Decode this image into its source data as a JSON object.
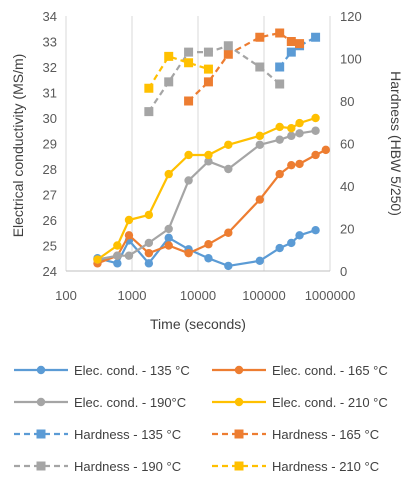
{
  "chart_data": {
    "type": "line",
    "xlabel": "Time (seconds)",
    "ylabel_left": "Electrical conductivity (MS/m)",
    "ylabel_right": "Hardness (HBW 5/250)",
    "x_scale": "log",
    "xlim": [
      100,
      1000000
    ],
    "x_ticks": [
      100,
      1000,
      10000,
      100000,
      1000000
    ],
    "x_tick_labels": [
      "100",
      "1000",
      "10000",
      "100000",
      "1000000"
    ],
    "ylim_left": [
      24,
      34
    ],
    "y_ticks_left": [
      24,
      25,
      26,
      27,
      28,
      29,
      30,
      31,
      32,
      33,
      34
    ],
    "y_tick_labels_left": [
      "24",
      "25",
      "26",
      "27",
      "28",
      "29",
      "30",
      "31",
      "32",
      "33",
      "34"
    ],
    "ylim_right": [
      0,
      120
    ],
    "y_ticks_right": [
      0,
      20,
      40,
      60,
      80,
      100,
      120
    ],
    "y_tick_labels_right": [
      "0",
      "20",
      "40",
      "60",
      "80",
      "100",
      "120"
    ],
    "grid": "vertical",
    "legend_position": "bottom",
    "colors": {
      "135": "#5b9bd5",
      "165": "#ed7d31",
      "190": "#a5a5a5",
      "210": "#ffc000",
      "grid": "#d9d9d9"
    },
    "series": [
      {
        "name": "Elec. cond. - 135 °C",
        "axis": "left",
        "style": "solid",
        "marker": "circle",
        "color_key": "135",
        "points": [
          [
            300,
            24.5
          ],
          [
            600,
            24.3
          ],
          [
            900,
            25.2
          ],
          [
            1800,
            24.3
          ],
          [
            3600,
            25.3
          ],
          [
            7200,
            24.85
          ],
          [
            14400,
            24.5
          ],
          [
            28800,
            24.2
          ],
          [
            86400,
            24.4
          ],
          [
            172800,
            24.9
          ],
          [
            259200,
            25.1
          ],
          [
            345600,
            25.4
          ],
          [
            604800,
            25.6
          ]
        ]
      },
      {
        "name": "Elec. cond. - 165 °C",
        "axis": "left",
        "style": "solid",
        "marker": "circle",
        "color_key": "165",
        "points": [
          [
            300,
            24.3
          ],
          [
            600,
            24.6
          ],
          [
            900,
            25.4
          ],
          [
            1800,
            24.7
          ],
          [
            3600,
            25.0
          ],
          [
            7200,
            24.7
          ],
          [
            14400,
            25.05
          ],
          [
            28800,
            25.5
          ],
          [
            86400,
            26.8
          ],
          [
            172800,
            27.8
          ],
          [
            259200,
            28.15
          ],
          [
            345600,
            28.2
          ],
          [
            604800,
            28.55
          ],
          [
            864000,
            28.75
          ]
        ]
      },
      {
        "name": "Elec. cond. - 190°C",
        "axis": "left",
        "style": "solid",
        "marker": "circle",
        "color_key": "190",
        "points": [
          [
            300,
            24.45
          ],
          [
            600,
            24.6
          ],
          [
            900,
            24.6
          ],
          [
            1800,
            25.1
          ],
          [
            3600,
            25.65
          ],
          [
            7200,
            27.55
          ],
          [
            14400,
            28.3
          ],
          [
            28800,
            28.0
          ],
          [
            86400,
            28.95
          ],
          [
            172800,
            29.15
          ],
          [
            259200,
            29.3
          ],
          [
            345600,
            29.4
          ],
          [
            604800,
            29.5
          ]
        ]
      },
      {
        "name": "Elec. cond. - 210 °C",
        "axis": "left",
        "style": "solid",
        "marker": "circle",
        "color_key": "210",
        "points": [
          [
            300,
            24.45
          ],
          [
            600,
            25.0
          ],
          [
            900,
            26.0
          ],
          [
            1800,
            26.2
          ],
          [
            3600,
            27.8
          ],
          [
            7200,
            28.55
          ],
          [
            14400,
            28.55
          ],
          [
            28800,
            28.95
          ],
          [
            86400,
            29.3
          ],
          [
            172800,
            29.65
          ],
          [
            259200,
            29.6
          ],
          [
            345600,
            29.8
          ],
          [
            604800,
            30.0
          ]
        ]
      },
      {
        "name": "Hardness - 135 °C",
        "axis": "right",
        "style": "dashed",
        "marker": "square",
        "color_key": "135",
        "points": [
          [
            172800,
            96
          ],
          [
            259200,
            103
          ],
          [
            345600,
            106
          ],
          [
            604800,
            110
          ]
        ]
      },
      {
        "name": "Hardness - 165 °C",
        "axis": "right",
        "style": "dashed",
        "marker": "square",
        "color_key": "165",
        "points": [
          [
            7200,
            80
          ],
          [
            14400,
            89
          ],
          [
            28800,
            102
          ],
          [
            86400,
            110
          ],
          [
            172800,
            112
          ],
          [
            259200,
            108
          ],
          [
            345600,
            107
          ]
        ]
      },
      {
        "name": "Hardness - 190 °C",
        "axis": "right",
        "style": "dashed",
        "marker": "square",
        "color_key": "190",
        "points": [
          [
            1800,
            75
          ],
          [
            3600,
            89
          ],
          [
            7200,
            103
          ],
          [
            14400,
            103
          ],
          [
            28800,
            106
          ],
          [
            86400,
            96
          ],
          [
            172800,
            88
          ]
        ]
      },
      {
        "name": "Hardness - 210 °C",
        "axis": "right",
        "style": "dashed",
        "marker": "square",
        "color_key": "210",
        "points": [
          [
            1800,
            86
          ],
          [
            3600,
            101
          ],
          [
            7200,
            98
          ],
          [
            14400,
            95
          ]
        ]
      }
    ]
  }
}
